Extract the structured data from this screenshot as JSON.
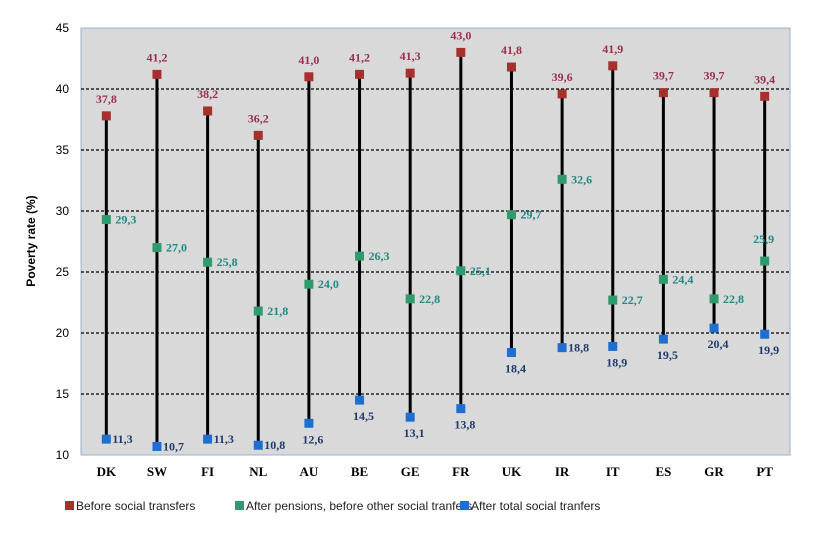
{
  "chart_data": {
    "type": "scatter",
    "ylabel": "Poverty rate (%)",
    "ylim": [
      10,
      45
    ],
    "yticks": [
      10,
      15,
      20,
      25,
      30,
      35,
      40,
      45
    ],
    "grid": true,
    "legend_position": "bottom",
    "categories": [
      "DK",
      "SW",
      "FI",
      "NL",
      "AU",
      "BE",
      "GE",
      "FR",
      "UK",
      "IR",
      "IT",
      "ES",
      "GR",
      "PT"
    ],
    "series": [
      {
        "name": "Before social transfers",
        "color": "#a5302e",
        "label_color": "#9b2f4e",
        "values": [
          37.8,
          41.2,
          38.2,
          36.2,
          41.0,
          41.2,
          41.3,
          43.0,
          41.8,
          39.6,
          41.9,
          39.7,
          39.7,
          39.4
        ],
        "labels": [
          "37,8",
          "41,2",
          "38,2",
          "36,2",
          "41,0",
          "41,2",
          "41,3",
          "43,0",
          "41,8",
          "39,6",
          "41,9",
          "39,7",
          "39,7",
          "39,4"
        ]
      },
      {
        "name": "After pensions, before other social tranfers",
        "color": "#2e9a6e",
        "label_color": "#1f8a82",
        "values": [
          29.3,
          27.0,
          25.8,
          21.8,
          24.0,
          26.3,
          22.8,
          25.1,
          29.7,
          32.6,
          22.7,
          24.4,
          22.8,
          25.9
        ],
        "labels": [
          "29,3",
          "27,0",
          "25,8",
          "21,8",
          "24,0",
          "26,3",
          "22,8",
          "25,1",
          "29,7",
          "32,6",
          "22,7",
          "24,4",
          "22,8",
          "25,9"
        ]
      },
      {
        "name": "After total social tranfers",
        "color": "#1f6fd0",
        "label_color": "#1f3a6b",
        "values": [
          11.3,
          10.7,
          11.3,
          10.8,
          12.6,
          14.5,
          13.1,
          13.8,
          18.4,
          18.8,
          18.9,
          19.5,
          20.4,
          19.9
        ],
        "labels": [
          "11,3",
          "10,7",
          "11,3",
          "10,8",
          "12,6",
          "14,5",
          "13,1",
          "13,8",
          "18,4",
          "18,8",
          "18,9",
          "19,5",
          "20,4",
          "19,9"
        ]
      }
    ]
  }
}
